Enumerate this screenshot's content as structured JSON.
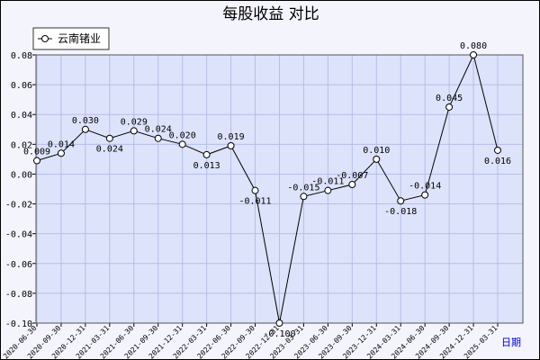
{
  "chart_data": {
    "type": "line",
    "title": "每股收益  对比",
    "xlabel": "日期",
    "ylabel": "",
    "ylim": [
      -0.1,
      0.08
    ],
    "yticks": [
      "0.08",
      "0.06",
      "0.04",
      "0.02",
      "0.00",
      "-0.02",
      "-0.04",
      "-0.06",
      "-0.08",
      "-0.10"
    ],
    "ytick_values": [
      0.08,
      0.06,
      0.04,
      0.02,
      0.0,
      -0.02,
      -0.04,
      -0.06,
      -0.08,
      -0.1
    ],
    "grid": true,
    "legend_position": "top-left",
    "categories": [
      "2020-06-30",
      "2020-09-30",
      "2020-12-31",
      "2021-03-31",
      "2021-06-30",
      "2021-09-30",
      "2021-12-31",
      "2022-03-31",
      "2022-06-30",
      "2022-09-30",
      "2022-12-31",
      "2023-03-31",
      "2023-06-30",
      "2023-09-30",
      "2023-12-31",
      "2024-03-31",
      "2024-06-30",
      "2024-09-30",
      "2024-12-31",
      "2025-03-31"
    ],
    "series": [
      {
        "name": "云南锗业",
        "color": "#000000",
        "values": [
          0.009,
          0.014,
          0.03,
          0.024,
          0.029,
          0.024,
          0.02,
          0.013,
          0.019,
          -0.011,
          -0.1,
          -0.015,
          -0.011,
          -0.007,
          0.01,
          -0.018,
          -0.014,
          0.045,
          0.08,
          0.016
        ],
        "labels": [
          "0.009",
          "0.014",
          "0.030",
          "0.024",
          "0.029",
          "0.024",
          "0.020",
          "0.013",
          "0.019",
          "-0.011",
          "-0.100",
          "-0.015",
          "-0.011",
          "-0.007",
          "0.010",
          "-0.018",
          "-0.014",
          "0.045",
          "0.080",
          "0.016"
        ]
      }
    ]
  },
  "colors": {
    "plot_background": "#dde3fb",
    "grid": "#b6bee6",
    "line": "#000000"
  }
}
